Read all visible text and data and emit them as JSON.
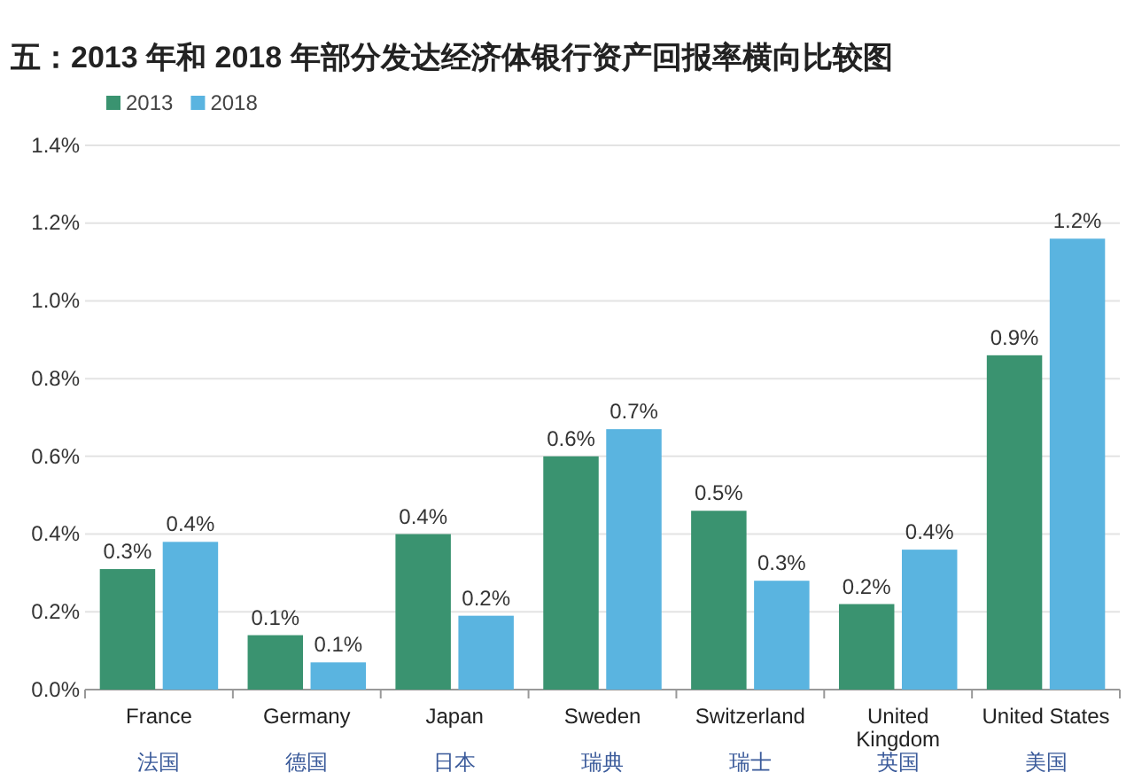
{
  "chart_data": {
    "type": "bar",
    "title": "五：2013 年和 2018 年部分发达经济体银行资产回报率横向比较图",
    "categories": [
      "France\n法国",
      "Germany\n德国",
      "Japan\n日本",
      "Sweden\n瑞典",
      "Switzerland\n瑞士",
      "United\nKingdom\n英国",
      "United States\n美国"
    ],
    "series": [
      {
        "name": "2013",
        "color": "#3a9370",
        "values": [
          0.31,
          0.14,
          0.4,
          0.6,
          0.46,
          0.22,
          0.86
        ],
        "value_labels": [
          "0.3%",
          "0.1%",
          "0.4%",
          "0.6%",
          "0.5%",
          "0.2%",
          "0.9%"
        ]
      },
      {
        "name": "2018",
        "color": "#5ab4e0",
        "values": [
          0.38,
          0.07,
          0.19,
          0.67,
          0.28,
          0.36,
          1.16
        ],
        "value_labels": [
          "0.4%",
          "0.1%",
          "0.2%",
          "0.7%",
          "0.3%",
          "0.4%",
          "1.2%"
        ]
      }
    ],
    "ylim": [
      0,
      1.4
    ],
    "yticks": [
      {
        "value": 0,
        "label": "0.0%"
      },
      {
        "value": 0.2,
        "label": "0.2%"
      },
      {
        "value": 0.4,
        "label": "0.4%"
      },
      {
        "value": 0.6,
        "label": "0.6%"
      },
      {
        "value": 0.8,
        "label": "0.8%"
      },
      {
        "value": 1.0,
        "label": "1.0%"
      },
      {
        "value": 1.2,
        "label": "1.2%"
      },
      {
        "value": 1.4,
        "label": "1.4%"
      }
    ],
    "grid": "y",
    "legend": "top left"
  }
}
